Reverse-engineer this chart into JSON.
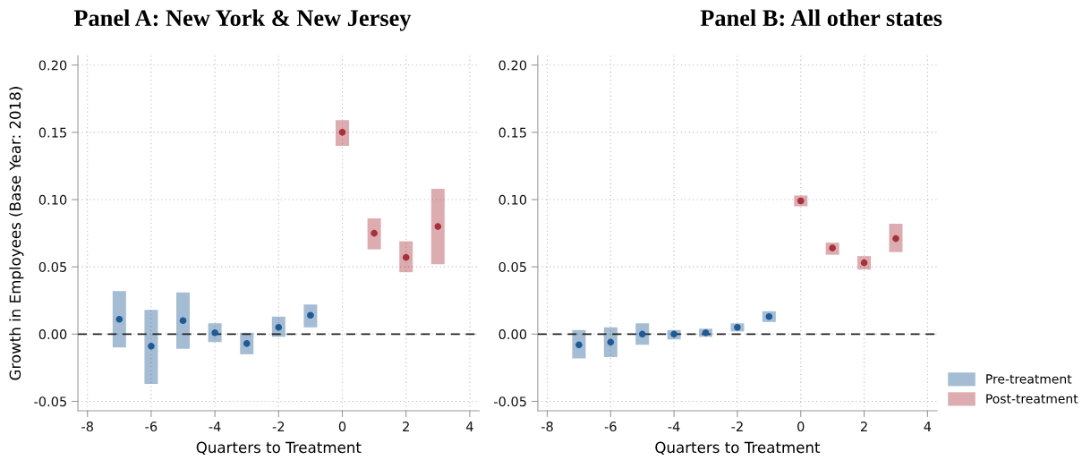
{
  "chart_data": [
    {
      "type": "scatter",
      "title": "Panel A: New York & New Jersey",
      "xlabel": "Quarters to Treatment",
      "ylabel": "Growth in Employees (Base Year: 2018)",
      "xlim": [
        -8.3,
        4.3
      ],
      "xticks": [
        -8,
        -6,
        -4,
        -2,
        0,
        2,
        4
      ],
      "ylim": [
        -0.057,
        0.207
      ],
      "yticks": [
        {
          "value": -0.05,
          "label": "-0.05"
        },
        {
          "value": 0,
          "label": "0.00"
        },
        {
          "value": 0.05,
          "label": "0.05"
        },
        {
          "value": 0.1,
          "label": "0.10"
        },
        {
          "value": 0.15,
          "label": "0.15"
        },
        {
          "value": 0.2,
          "label": "0.20"
        }
      ],
      "grid": true,
      "marker": "circle",
      "legend": false,
      "ref_lines": [
        {
          "axis": "y",
          "value": 0,
          "color": "#222222",
          "line_style": "dashed"
        }
      ],
      "series": [
        {
          "color": "#1f5a94",
          "x": [
            -7,
            -6,
            -5,
            -4,
            -3,
            -2,
            -1
          ],
          "values": [
            0.011,
            -0.009,
            0.01,
            0.001,
            -0.007,
            0.005,
            0.014
          ],
          "errors": [
            [
              -0.01,
              0.032
            ],
            [
              -0.037,
              0.018
            ],
            [
              -0.011,
              0.031
            ],
            [
              -0.006,
              0.008
            ],
            [
              -0.015,
              0.001
            ],
            [
              -0.002,
              0.013
            ],
            [
              0.005,
              0.022
            ]
          ]
        },
        {
          "color": "#a8303a",
          "x": [
            0,
            1,
            2,
            3
          ],
          "values": [
            0.15,
            0.075,
            0.057,
            0.08
          ],
          "errors": [
            [
              0.14,
              0.159
            ],
            [
              0.063,
              0.086
            ],
            [
              0.046,
              0.069
            ],
            [
              0.052,
              0.108
            ]
          ]
        }
      ]
    },
    {
      "type": "scatter",
      "title": "Panel B: All other states",
      "xlabel": "Quarters to Treatment",
      "xlim": [
        -8.3,
        4.3
      ],
      "xticks": [
        -8,
        -6,
        -4,
        -2,
        0,
        2,
        4
      ],
      "ylim": [
        -0.057,
        0.207
      ],
      "yticks": [
        {
          "value": -0.05,
          "label": "-0.05"
        },
        {
          "value": 0,
          "label": "0.00"
        },
        {
          "value": 0.05,
          "label": "0.05"
        },
        {
          "value": 0.1,
          "label": "0.10"
        },
        {
          "value": 0.15,
          "label": "0.15"
        },
        {
          "value": 0.2,
          "label": "0.20"
        }
      ],
      "grid": true,
      "marker": "circle",
      "legend": "bottom right",
      "ref_lines": [
        {
          "axis": "y",
          "value": 0,
          "color": "#222222",
          "line_style": "dashed"
        }
      ],
      "series": [
        {
          "name": "Pre-treatment",
          "color": "#1f5a94",
          "x": [
            -7,
            -6,
            -5,
            -4,
            -3,
            -2,
            -1
          ],
          "values": [
            -0.008,
            -0.006,
            0.0,
            0.0,
            0.001,
            0.005,
            0.013
          ],
          "errors": [
            [
              -0.018,
              0.003
            ],
            [
              -0.017,
              0.005
            ],
            [
              -0.008,
              0.008
            ],
            [
              -0.004,
              0.003
            ],
            [
              -0.002,
              0.004
            ],
            [
              0.002,
              0.008
            ],
            [
              0.009,
              0.017
            ]
          ]
        },
        {
          "name": "Post-treatment",
          "color": "#a8303a",
          "x": [
            0,
            1,
            2,
            3
          ],
          "values": [
            0.099,
            0.064,
            0.053,
            0.071
          ],
          "errors": [
            [
              0.095,
              0.103
            ],
            [
              0.059,
              0.068
            ],
            [
              0.048,
              0.058
            ],
            [
              0.061,
              0.082
            ]
          ]
        }
      ]
    }
  ]
}
